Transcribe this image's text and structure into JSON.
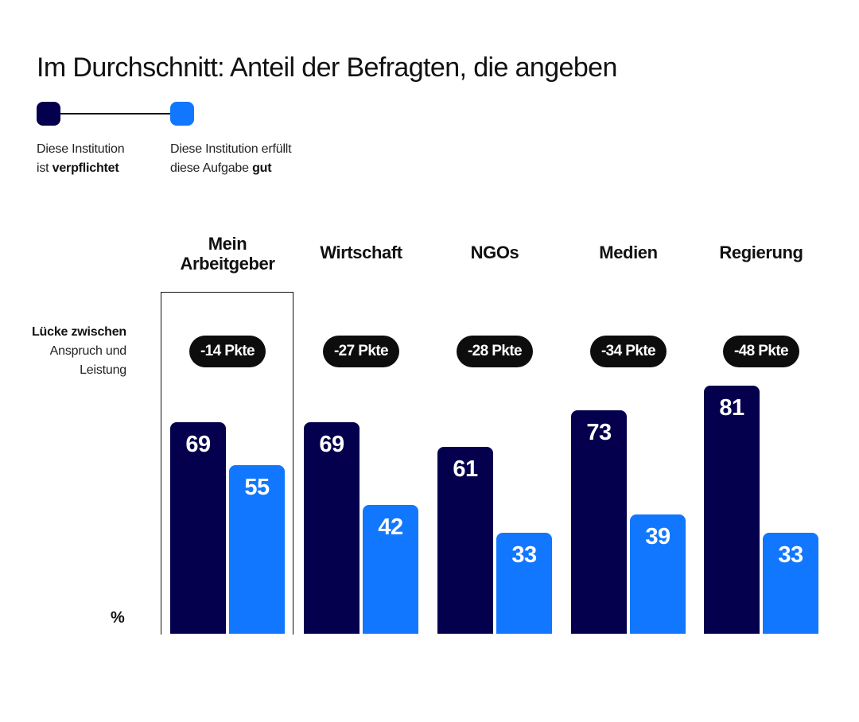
{
  "title": "Im Durchschnitt: Anteil der Befragten, die angeben",
  "legend": {
    "items": [
      {
        "text_plain": "Diese Institution",
        "text_line2_plain": "ist ",
        "text_line2_bold": "verpflichtet",
        "color": "#05004D"
      },
      {
        "text_plain": "Diese Institution erfüllt",
        "text_line2_plain": "diese Aufgabe ",
        "text_line2_bold": "gut",
        "color": "#1177FF"
      }
    ]
  },
  "gap_label": {
    "bold": "Lücke zwischen",
    "line2": "Anspruch und",
    "line3": "Leistung"
  },
  "unit_label": "%",
  "colors": {
    "obligated": "#05004D",
    "performs_well": "#1177FF",
    "pill": "#0D0D0D"
  },
  "chart_data": {
    "type": "bar",
    "title": "Im Durchschnitt: Anteil der Befragten, die angeben",
    "xlabel": "",
    "ylabel": "%",
    "ylim": [
      0,
      100
    ],
    "grid": false,
    "legend_position": "top-left",
    "categories": [
      "Mein Arbeitgeber",
      "Wirtschaft",
      "NGOs",
      "Medien",
      "Regierung"
    ],
    "category_lines": [
      [
        "Mein",
        "Arbeitgeber"
      ],
      [
        "Wirtschaft"
      ],
      [
        "NGOs"
      ],
      [
        "Medien"
      ],
      [
        "Regierung"
      ]
    ],
    "highlighted_category": "Mein Arbeitgeber",
    "series": [
      {
        "name": "Diese Institution ist verpflichtet",
        "values": [
          69,
          69,
          61,
          73,
          81
        ]
      },
      {
        "name": "Diese Institution erfüllt diese Aufgabe gut",
        "values": [
          55,
          42,
          33,
          39,
          33
        ]
      }
    ],
    "gap_annotations": [
      "-14 Pkte",
      "-27 Pkte",
      "-28 Pkte",
      "-34 Pkte",
      "-48 Pkte"
    ]
  }
}
